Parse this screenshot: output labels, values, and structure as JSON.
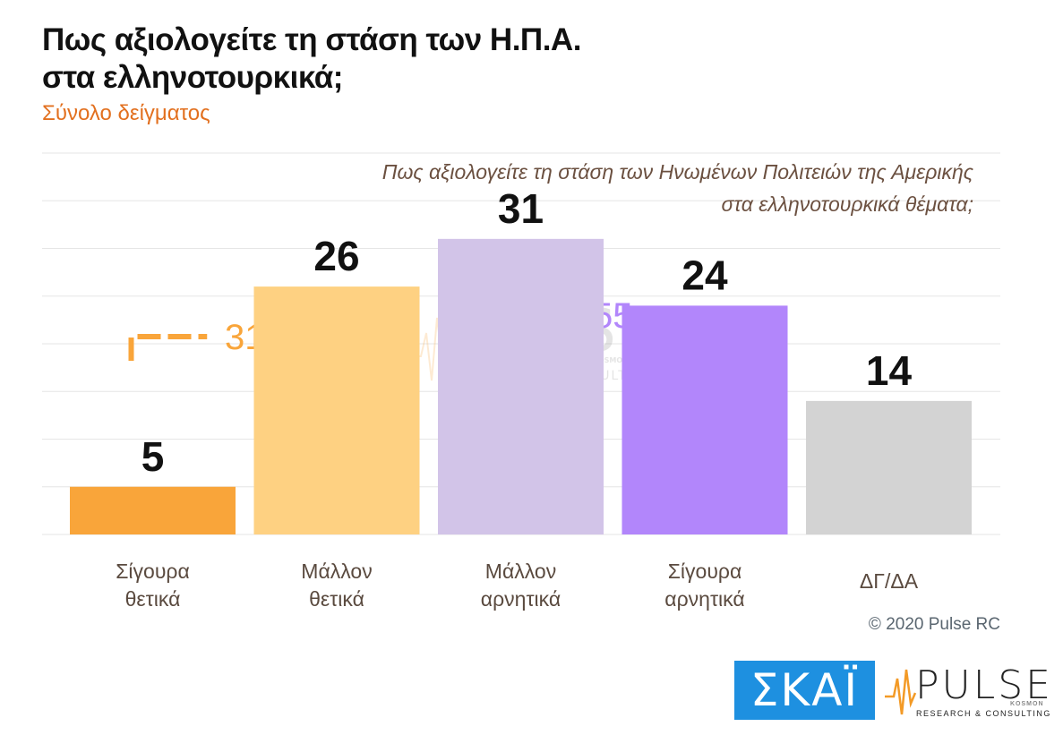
{
  "header": {
    "title_line1": "Πως αξιολογείτε τη στάση των Η.Π.Α.",
    "title_line2": "στα ελληνοτουρκικά;",
    "subtitle": "Σύνολο δείγματος"
  },
  "question": {
    "line1": "Πως αξιολογείτε τη στάση των Ηνωμένων Πολιτειών της Αμερικής",
    "line2": "στα ελληνοτουρκικά θέματα;"
  },
  "chart_data": {
    "type": "bar",
    "categories": [
      [
        "Σίγουρα",
        "θετικά"
      ],
      [
        "Μάλλον",
        "θετικά"
      ],
      [
        "Μάλλον",
        "αρνητικά"
      ],
      [
        "Σίγουρα",
        "αρνητικά"
      ],
      [
        "ΔΓ/ΔΑ"
      ]
    ],
    "values": [
      5,
      26,
      31,
      24,
      14
    ],
    "value_labels": [
      "5",
      "26",
      "31",
      "24",
      "14"
    ],
    "colors": [
      "#f9a53a",
      "#fed182",
      "#d2c4e8",
      "#b286fb",
      "#d3d3d3"
    ],
    "ylim": [
      0,
      40
    ],
    "grid": true,
    "groups": [
      {
        "label": "31",
        "from": 0,
        "to": 1,
        "color": "#f9a53a"
      },
      {
        "label": "55",
        "from": 2,
        "to": 3,
        "color": "#b286fb"
      }
    ]
  },
  "watermark": {
    "word": "PULSE",
    "sub": "RESEARCH & CONSULTING",
    "tag": "KOSMON"
  },
  "footer": {
    "copyright": "© 2020 Pulse RC",
    "skai_logo": "ΣΚΑΪ",
    "pulse_word": "PULSE",
    "pulse_sub": "RESEARCH & CONSULTING",
    "pulse_tag": "KOSMON"
  }
}
